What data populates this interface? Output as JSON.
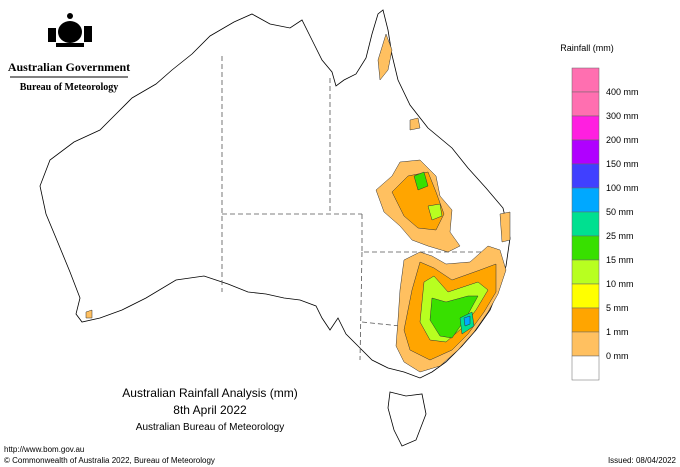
{
  "header": {
    "government": "Australian Government",
    "agency": "Bureau of Meteorology"
  },
  "legend": {
    "title": "Rainfall (mm)",
    "swatches": [
      "#ff6fb0",
      "#ff1fe0",
      "#b000ff",
      "#4040ff",
      "#00a8ff",
      "#00e090",
      "#38e000",
      "#b8ff20",
      "#ffff00",
      "#ffa500",
      "#ffc060",
      "#ffffff"
    ],
    "labels": [
      "400 mm",
      "300 mm",
      "200 mm",
      "150 mm",
      "100 mm",
      "50 mm",
      "25 mm",
      "15 mm",
      "10 mm",
      "5 mm",
      "1 mm",
      "0 mm"
    ]
  },
  "title": {
    "line1": "Australian Rainfall Analysis (mm)",
    "line2": "8th April 2022",
    "line3": "Australian Bureau of Meteorology"
  },
  "footer": {
    "url": "http://www.bom.gov.au",
    "copyright": "© Commonwealth of Australia 2022, Bureau of Meteorology",
    "issued": "Issued: 08/04/2022"
  }
}
